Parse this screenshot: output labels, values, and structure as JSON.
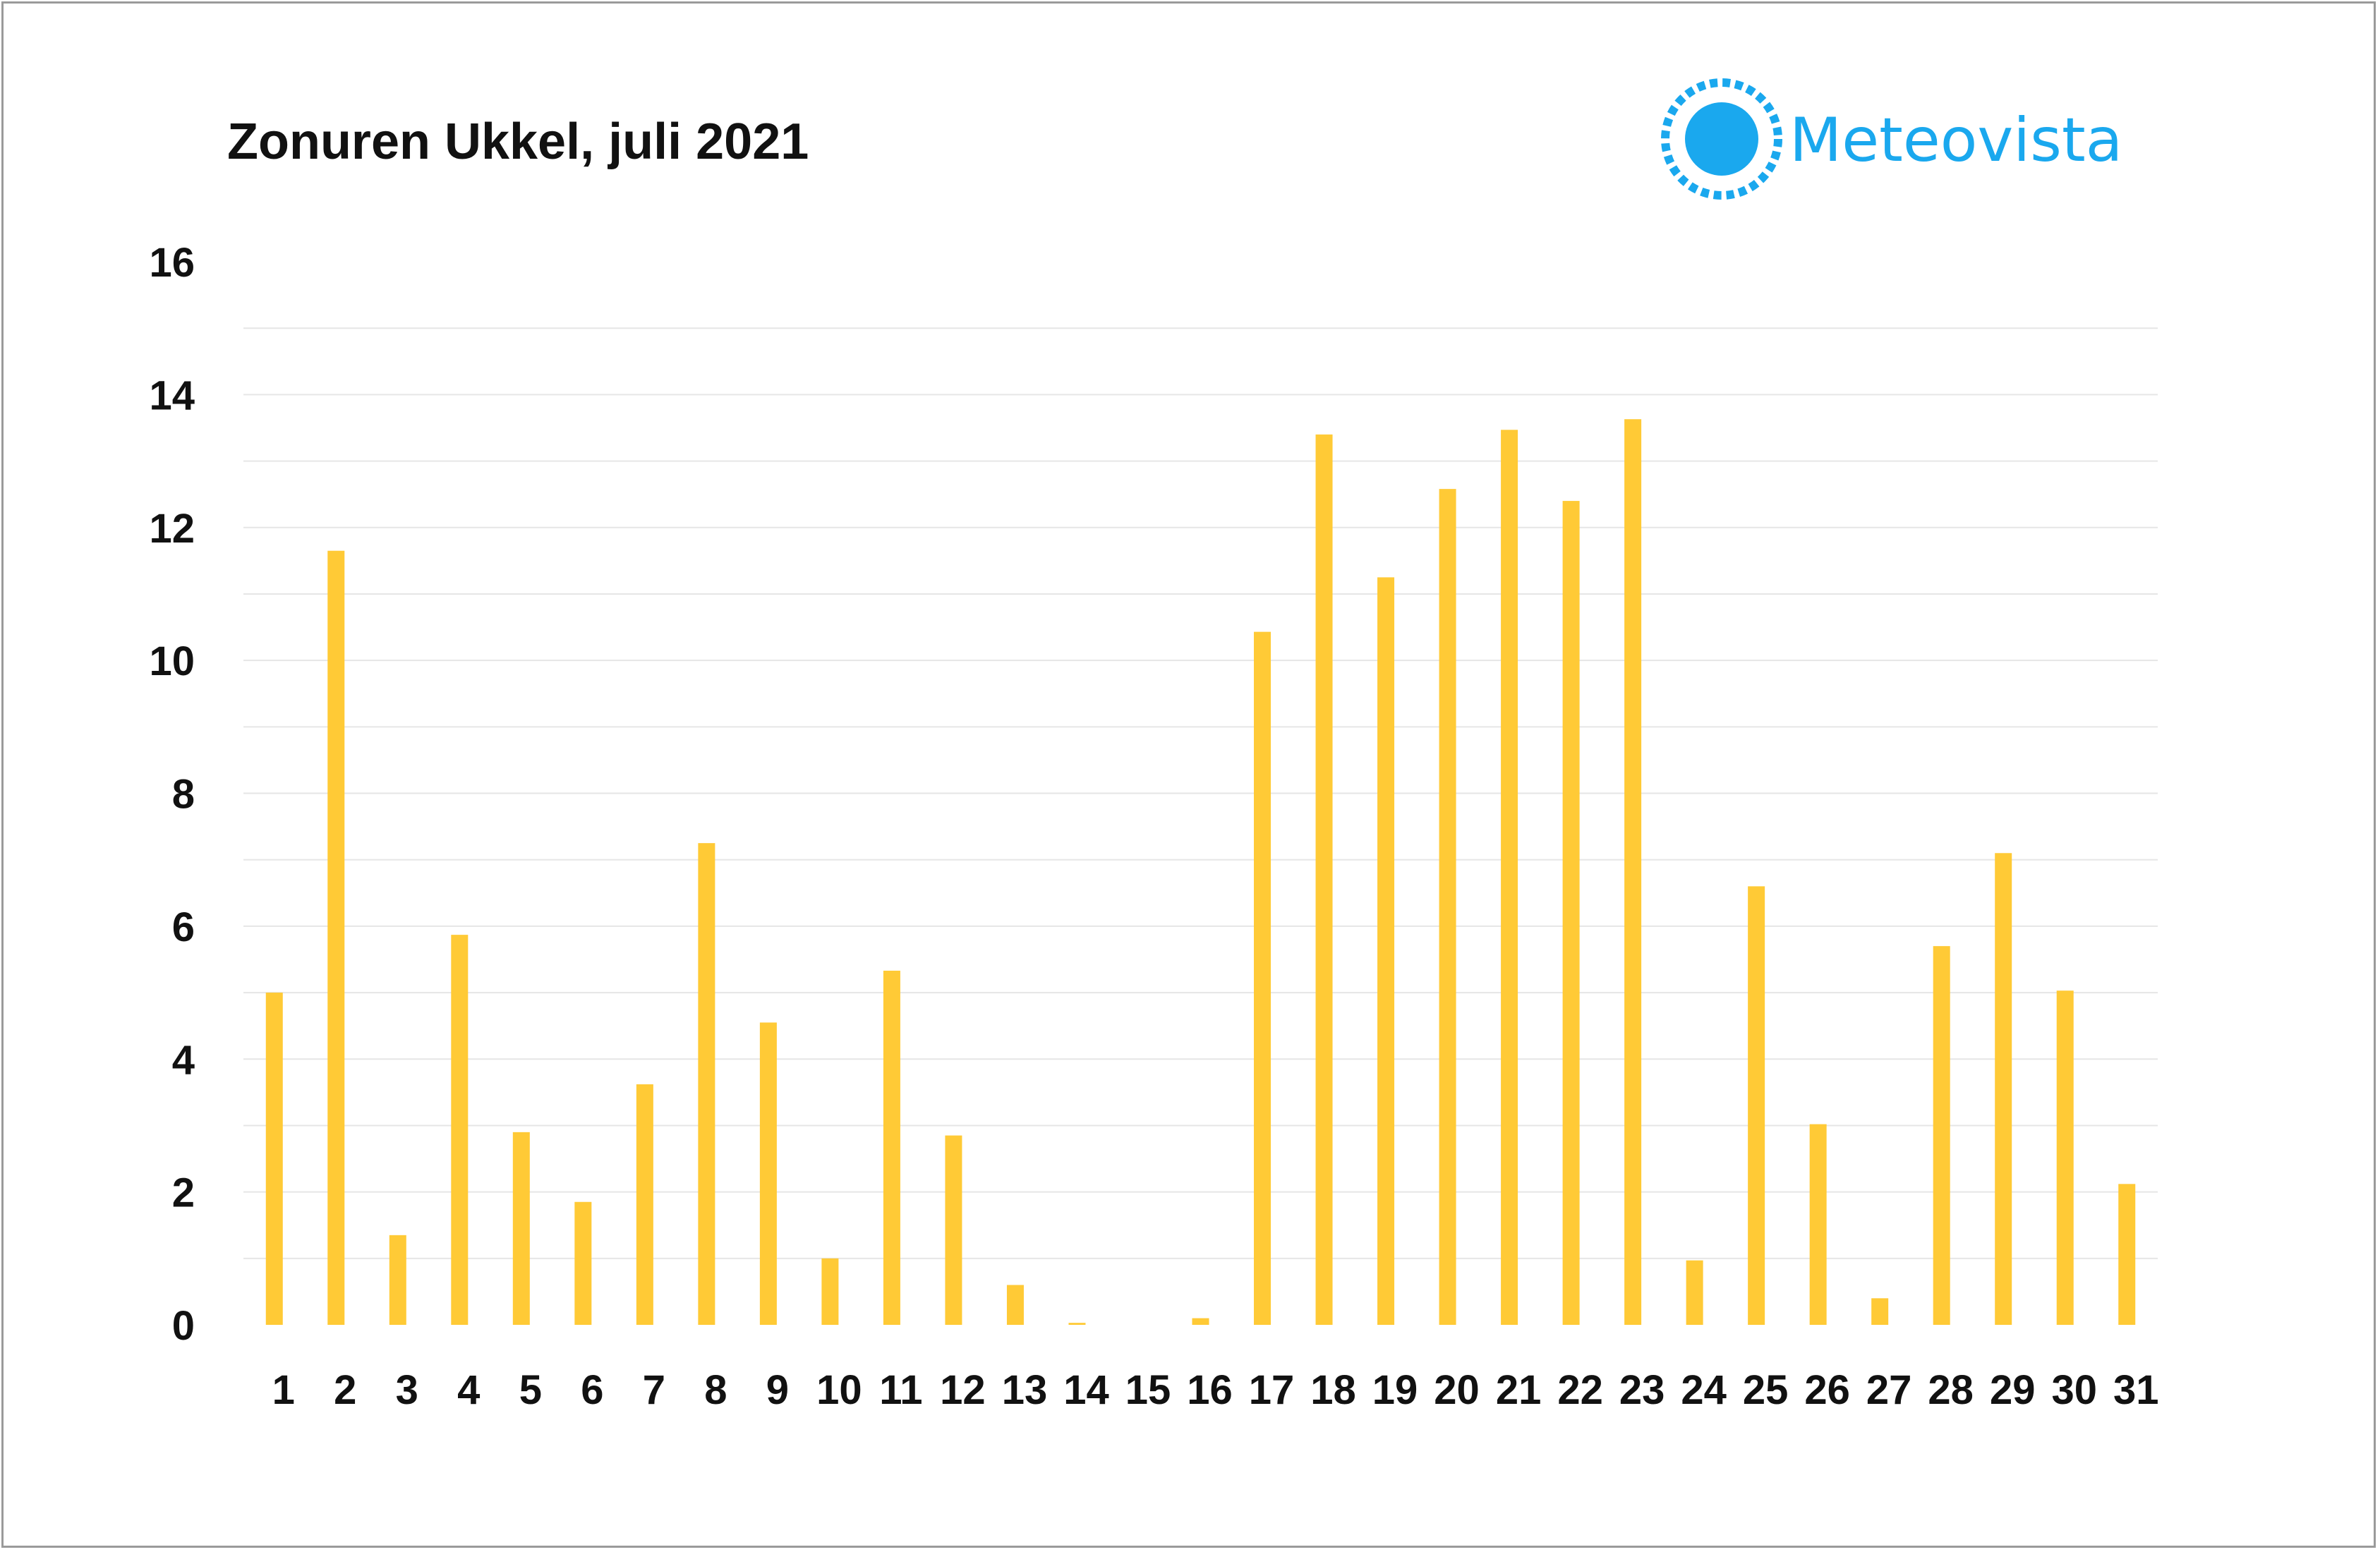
{
  "chart_data": {
    "type": "bar",
    "title": "Zonuren Ukkel, juli 2021",
    "xlabel": "",
    "ylabel": "",
    "categories": [
      "1",
      "2",
      "3",
      "4",
      "5",
      "6",
      "7",
      "8",
      "9",
      "10",
      "11",
      "12",
      "13",
      "14",
      "15",
      "16",
      "17",
      "18",
      "19",
      "20",
      "21",
      "22",
      "23",
      "24",
      "25",
      "26",
      "27",
      "28",
      "29",
      "30",
      "31"
    ],
    "values": [
      5.0,
      11.65,
      1.35,
      5.87,
      2.9,
      1.85,
      3.62,
      7.25,
      4.55,
      1.0,
      5.33,
      2.85,
      0.6,
      0.03,
      0.0,
      0.1,
      10.43,
      13.4,
      11.25,
      12.58,
      13.47,
      12.4,
      13.63,
      0.97,
      6.6,
      3.02,
      0.4,
      5.7,
      7.1,
      5.03,
      2.12
    ],
    "ylim": [
      0,
      16
    ],
    "yticks": [
      0,
      2,
      4,
      6,
      8,
      10,
      12,
      14,
      16
    ],
    "grid": true,
    "legend": "none",
    "bar_color": "#ffca36",
    "grid_color": "#e6e6e6"
  },
  "logo": {
    "text": "Meteovista",
    "color": "#1aa8ee",
    "icon": "sun-icon"
  }
}
